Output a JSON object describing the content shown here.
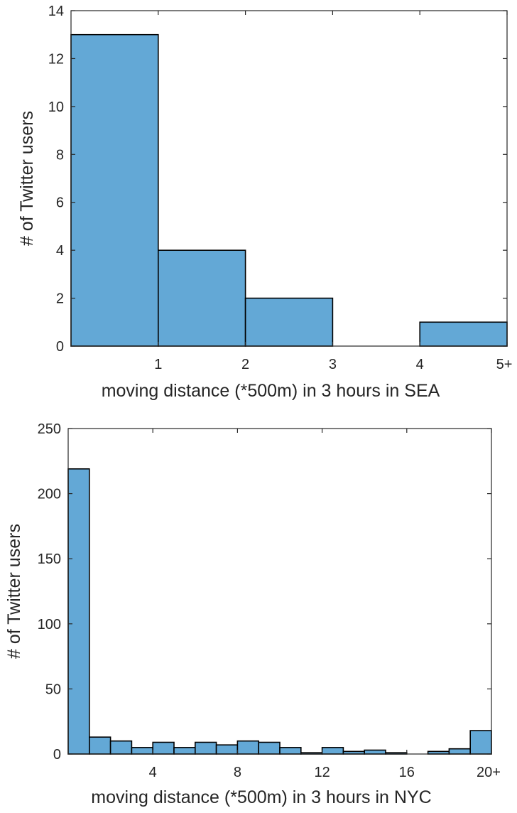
{
  "colors": {
    "bar_fill": "#63a8d6",
    "bar_edge": "#000000",
    "axis": "#262626"
  },
  "chart_data": [
    {
      "type": "bar",
      "title": "",
      "xlabel": "moving distance (*500m) in 3 hours in SEA",
      "ylabel": "# of Twitter users",
      "xlim": [
        0,
        5
      ],
      "ylim": [
        0,
        14
      ],
      "yticks": [
        0,
        2,
        4,
        6,
        8,
        10,
        12,
        14
      ],
      "xticks": [
        {
          "value": 1,
          "label": "1"
        },
        {
          "value": 2,
          "label": "2"
        },
        {
          "value": 3,
          "label": "3"
        },
        {
          "value": 4,
          "label": "4"
        },
        {
          "value": 5,
          "label": "5+"
        }
      ],
      "bins": [
        {
          "start": 0,
          "end": 1,
          "value": 13
        },
        {
          "start": 1,
          "end": 2,
          "value": 4
        },
        {
          "start": 2,
          "end": 3,
          "value": 2
        },
        {
          "start": 3,
          "end": 4,
          "value": 0
        },
        {
          "start": 4,
          "end": 5,
          "value": 1
        }
      ],
      "grid": false,
      "legend": "none"
    },
    {
      "type": "bar",
      "title": "",
      "xlabel": "moving distance (*500m) in 3 hours in NYC",
      "ylabel": "# of Twitter users",
      "xlim": [
        0,
        20
      ],
      "ylim": [
        0,
        250
      ],
      "yticks": [
        0,
        50,
        100,
        150,
        200,
        250
      ],
      "xticks": [
        {
          "value": 4,
          "label": "4"
        },
        {
          "value": 8,
          "label": "8"
        },
        {
          "value": 12,
          "label": "12"
        },
        {
          "value": 16,
          "label": "16"
        },
        {
          "value": 20,
          "label": "20+"
        }
      ],
      "bins": [
        {
          "start": 0,
          "end": 1,
          "value": 219
        },
        {
          "start": 1,
          "end": 2,
          "value": 13
        },
        {
          "start": 2,
          "end": 3,
          "value": 10
        },
        {
          "start": 3,
          "end": 4,
          "value": 5
        },
        {
          "start": 4,
          "end": 5,
          "value": 9
        },
        {
          "start": 5,
          "end": 6,
          "value": 5
        },
        {
          "start": 6,
          "end": 7,
          "value": 9
        },
        {
          "start": 7,
          "end": 8,
          "value": 7
        },
        {
          "start": 8,
          "end": 9,
          "value": 10
        },
        {
          "start": 9,
          "end": 10,
          "value": 9
        },
        {
          "start": 10,
          "end": 11,
          "value": 5
        },
        {
          "start": 11,
          "end": 12,
          "value": 1
        },
        {
          "start": 12,
          "end": 13,
          "value": 5
        },
        {
          "start": 13,
          "end": 14,
          "value": 2
        },
        {
          "start": 14,
          "end": 15,
          "value": 3
        },
        {
          "start": 15,
          "end": 16,
          "value": 1
        },
        {
          "start": 16,
          "end": 17,
          "value": 0
        },
        {
          "start": 17,
          "end": 18,
          "value": 2
        },
        {
          "start": 18,
          "end": 19,
          "value": 4
        },
        {
          "start": 19,
          "end": 20,
          "value": 18
        }
      ],
      "grid": false,
      "legend": "none"
    }
  ]
}
